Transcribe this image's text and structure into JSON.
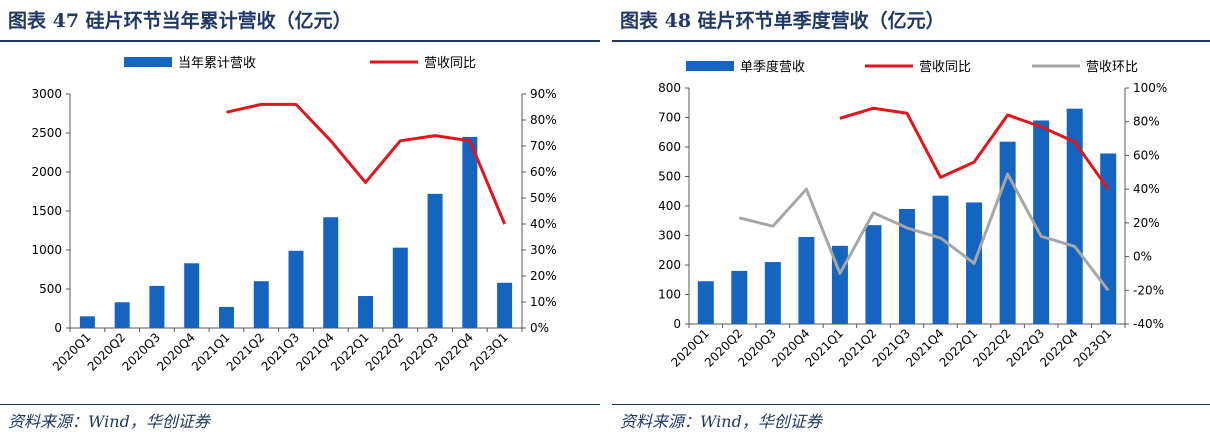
{
  "panels": [
    {
      "title": "图表 47   硅片环节当年累计营收（亿元）",
      "source": "资料来源：Wind，华创证券"
    },
    {
      "title": "图表 48   硅片环节单季度营收（亿元）",
      "source": "资料来源：Wind，华创证券"
    }
  ],
  "colors": {
    "bar": "#1565c0",
    "line_yoy": "#e3141e",
    "line_qoq": "#a6a6a6",
    "title": "#1f3864"
  },
  "chart_data": [
    {
      "type": "bar",
      "categories": [
        "2020Q1",
        "2020Q2",
        "2020Q3",
        "2020Q4",
        "2021Q1",
        "2021Q2",
        "2021Q3",
        "2021Q4",
        "2022Q1",
        "2022Q2",
        "2022Q3",
        "2022Q4",
        "2023Q1"
      ],
      "series": [
        {
          "name": "当年累计营收",
          "type": "bar",
          "axis": "left",
          "values": [
            150,
            330,
            540,
            830,
            270,
            600,
            990,
            1420,
            410,
            1030,
            1720,
            2450,
            580
          ]
        },
        {
          "name": "营收同比",
          "type": "line",
          "axis": "right",
          "values": [
            null,
            null,
            null,
            null,
            83,
            86,
            86,
            72,
            56,
            72,
            74,
            72,
            40
          ]
        }
      ],
      "ylim_left": [
        0,
        3000
      ],
      "yticks_left": [
        0,
        500,
        1000,
        1500,
        2000,
        2500,
        3000
      ],
      "ylim_right": [
        0,
        90
      ],
      "yticks_right": [
        "0%",
        "10%",
        "20%",
        "30%",
        "40%",
        "50%",
        "60%",
        "70%",
        "80%",
        "90%"
      ],
      "legend": "top"
    },
    {
      "type": "bar",
      "categories": [
        "2020Q1",
        "2020Q2",
        "2020Q3",
        "2020Q4",
        "2021Q1",
        "2021Q2",
        "2021Q3",
        "2021Q4",
        "2022Q1",
        "2022Q2",
        "2022Q3",
        "2022Q4",
        "2023Q1"
      ],
      "series": [
        {
          "name": "单季度营收",
          "type": "bar",
          "axis": "left",
          "values": [
            145,
            180,
            210,
            295,
            265,
            335,
            390,
            435,
            412,
            618,
            690,
            730,
            578
          ]
        },
        {
          "name": "营收同比",
          "type": "line",
          "axis": "right",
          "values": [
            null,
            null,
            null,
            null,
            82,
            88,
            85,
            47,
            56,
            84,
            77,
            68,
            40
          ]
        },
        {
          "name": "营收环比",
          "type": "line",
          "axis": "right",
          "values": [
            null,
            23,
            18,
            40,
            -10,
            26,
            17,
            11,
            -4,
            49,
            12,
            6,
            -20
          ]
        }
      ],
      "ylim_left": [
        0,
        800
      ],
      "yticks_left": [
        0,
        100,
        200,
        300,
        400,
        500,
        600,
        700,
        800
      ],
      "ylim_right": [
        -40,
        100
      ],
      "yticks_right": [
        "-40%",
        "-20%",
        "0%",
        "20%",
        "40%",
        "60%",
        "80%",
        "100%"
      ],
      "legend": "top"
    }
  ]
}
